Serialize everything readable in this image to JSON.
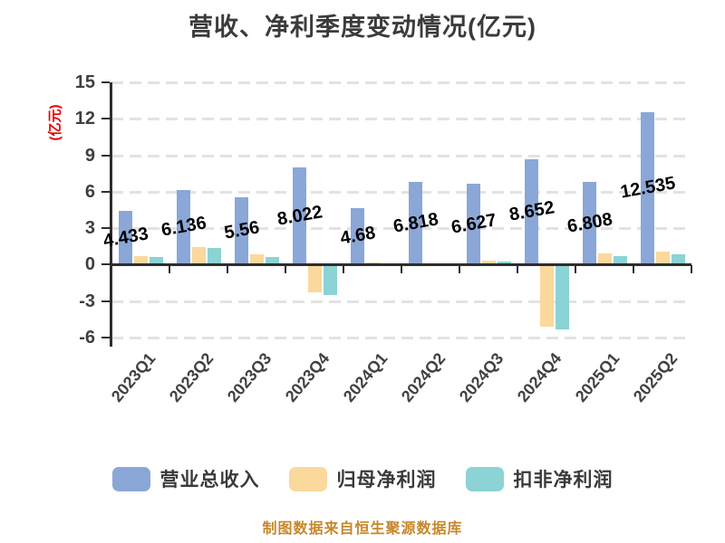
{
  "title": "营收、净利季度变动情况(亿元)",
  "y_axis_title": "(亿元)",
  "footer": "制图数据来自恒生聚源数据库",
  "colors": {
    "revenue_blue": "#8aa7d7",
    "net_profit_orange": "#fbd89c",
    "non_gaap_teal": "#8bd3d4",
    "axis": "#2e2e2e",
    "grid": "#e2e2e2",
    "y_axis_title_red": "#e60000",
    "footer_orange": "#c6872b",
    "title_text": "#3b3b3b",
    "bar_label": "#000000"
  },
  "chart_data": {
    "type": "bar",
    "title": "营收、净利季度变动情况(亿元)",
    "ylabel": "(亿元)",
    "ylim": [
      -6,
      15
    ],
    "yticks": [
      15,
      12,
      9,
      6,
      3,
      0,
      -3,
      -6
    ],
    "grid": "dashed horizontal",
    "legend_position": "bottom",
    "categories": [
      "2023Q1",
      "2023Q2",
      "2023Q3",
      "2023Q4",
      "2024Q1",
      "2024Q2",
      "2024Q3",
      "2024Q4",
      "2025Q1",
      "2025Q2"
    ],
    "series": [
      {
        "name": "营业总收入",
        "color": "#8aa7d7",
        "values": [
          4.433,
          6.136,
          5.56,
          8.022,
          4.68,
          6.818,
          6.627,
          8.652,
          6.808,
          12.535
        ],
        "labels": [
          "4.433",
          "6.136",
          "5.56",
          "8.022",
          "4.68",
          "6.818",
          "6.627",
          "8.652",
          "6.808",
          "12.535"
        ]
      },
      {
        "name": "归母净利润",
        "color": "#fbd89c",
        "values": [
          0.72,
          1.45,
          0.82,
          -2.2,
          0.16,
          0.12,
          0.35,
          -5.0,
          0.92,
          1.1
        ],
        "values_note": "estimated from pixels, unlabeled"
      },
      {
        "name": "扣非净利润",
        "color": "#8bd3d4",
        "values": [
          0.6,
          1.37,
          0.66,
          -2.45,
          0.03,
          0.03,
          0.27,
          -5.25,
          0.72,
          0.84
        ],
        "values_note": "estimated from pixels, unlabeled"
      }
    ]
  },
  "legend": {
    "items": [
      {
        "label": "营业总收入",
        "color": "#8aa7d7"
      },
      {
        "label": "归母净利润",
        "color": "#fbd89c"
      },
      {
        "label": "扣非净利润",
        "color": "#8bd3d4"
      }
    ]
  }
}
